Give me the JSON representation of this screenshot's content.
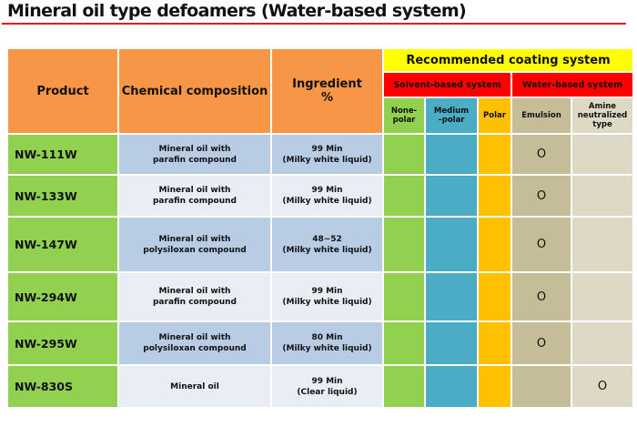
{
  "title": "Mineral oil type defoamers (Water-based system)",
  "header": {
    "product": "Product",
    "chemical": "Chemical composition",
    "ingredient_1": "Ingredient",
    "ingredient_2": "%",
    "recommended": "Recommended coating system",
    "solvent": "Solvent-based system",
    "water": "Water-based system",
    "sub": [
      [
        "None-",
        "polar"
      ],
      [
        "Medium",
        "–polar"
      ],
      [
        "Polar",
        ""
      ],
      [
        "Emulsion",
        ""
      ],
      [
        "Amine",
        "neutralized",
        "type"
      ]
    ]
  },
  "colors": {
    "header": "#f79646",
    "recommended": "#ffff00",
    "system": "#ff0000",
    "nonpolar": "#92d050",
    "medium": "#4bacc6",
    "polar": "#ffc000",
    "emulsion": "#c4bd97",
    "amine": "#ddd9c4"
  },
  "rows": [
    {
      "product": "NW-111W",
      "chem": [
        "Mineral oil with",
        "parafin compound"
      ],
      "ing": [
        "99 Min",
        "(Milky white liquid)"
      ],
      "marks": [
        "",
        "",
        "",
        "O",
        ""
      ]
    },
    {
      "product": "NW-133W",
      "chem": [
        "Mineral oil with",
        "parafin compound"
      ],
      "ing": [
        "99 Min",
        "(Milky white liquid)"
      ],
      "marks": [
        "",
        "",
        "",
        "O",
        ""
      ]
    },
    {
      "product": "NW-147W",
      "chem": [
        "Mineral oil with",
        "polysiloxan compound"
      ],
      "ing": [
        "48~52",
        "(Milky white liquid)"
      ],
      "marks": [
        "",
        "",
        "",
        "O",
        ""
      ]
    },
    {
      "product": "NW-294W",
      "chem": [
        "Mineral oil with",
        "parafin compound"
      ],
      "ing": [
        "99 Min",
        "(Milky white liquid)"
      ],
      "marks": [
        "",
        "",
        "",
        "O",
        ""
      ]
    },
    {
      "product": "NW-295W",
      "chem": [
        "Mineral oil with",
        "polysiloxan compound"
      ],
      "ing": [
        "80 Min",
        "(Milky white liquid)"
      ],
      "marks": [
        "",
        "",
        "",
        "O",
        ""
      ]
    },
    {
      "product": "NW-830S",
      "chem": [
        "Mineral oil",
        ""
      ],
      "ing": [
        "99 Min",
        "(Clear liquid)"
      ],
      "marks": [
        "",
        "",
        "",
        "",
        "O"
      ]
    }
  ]
}
